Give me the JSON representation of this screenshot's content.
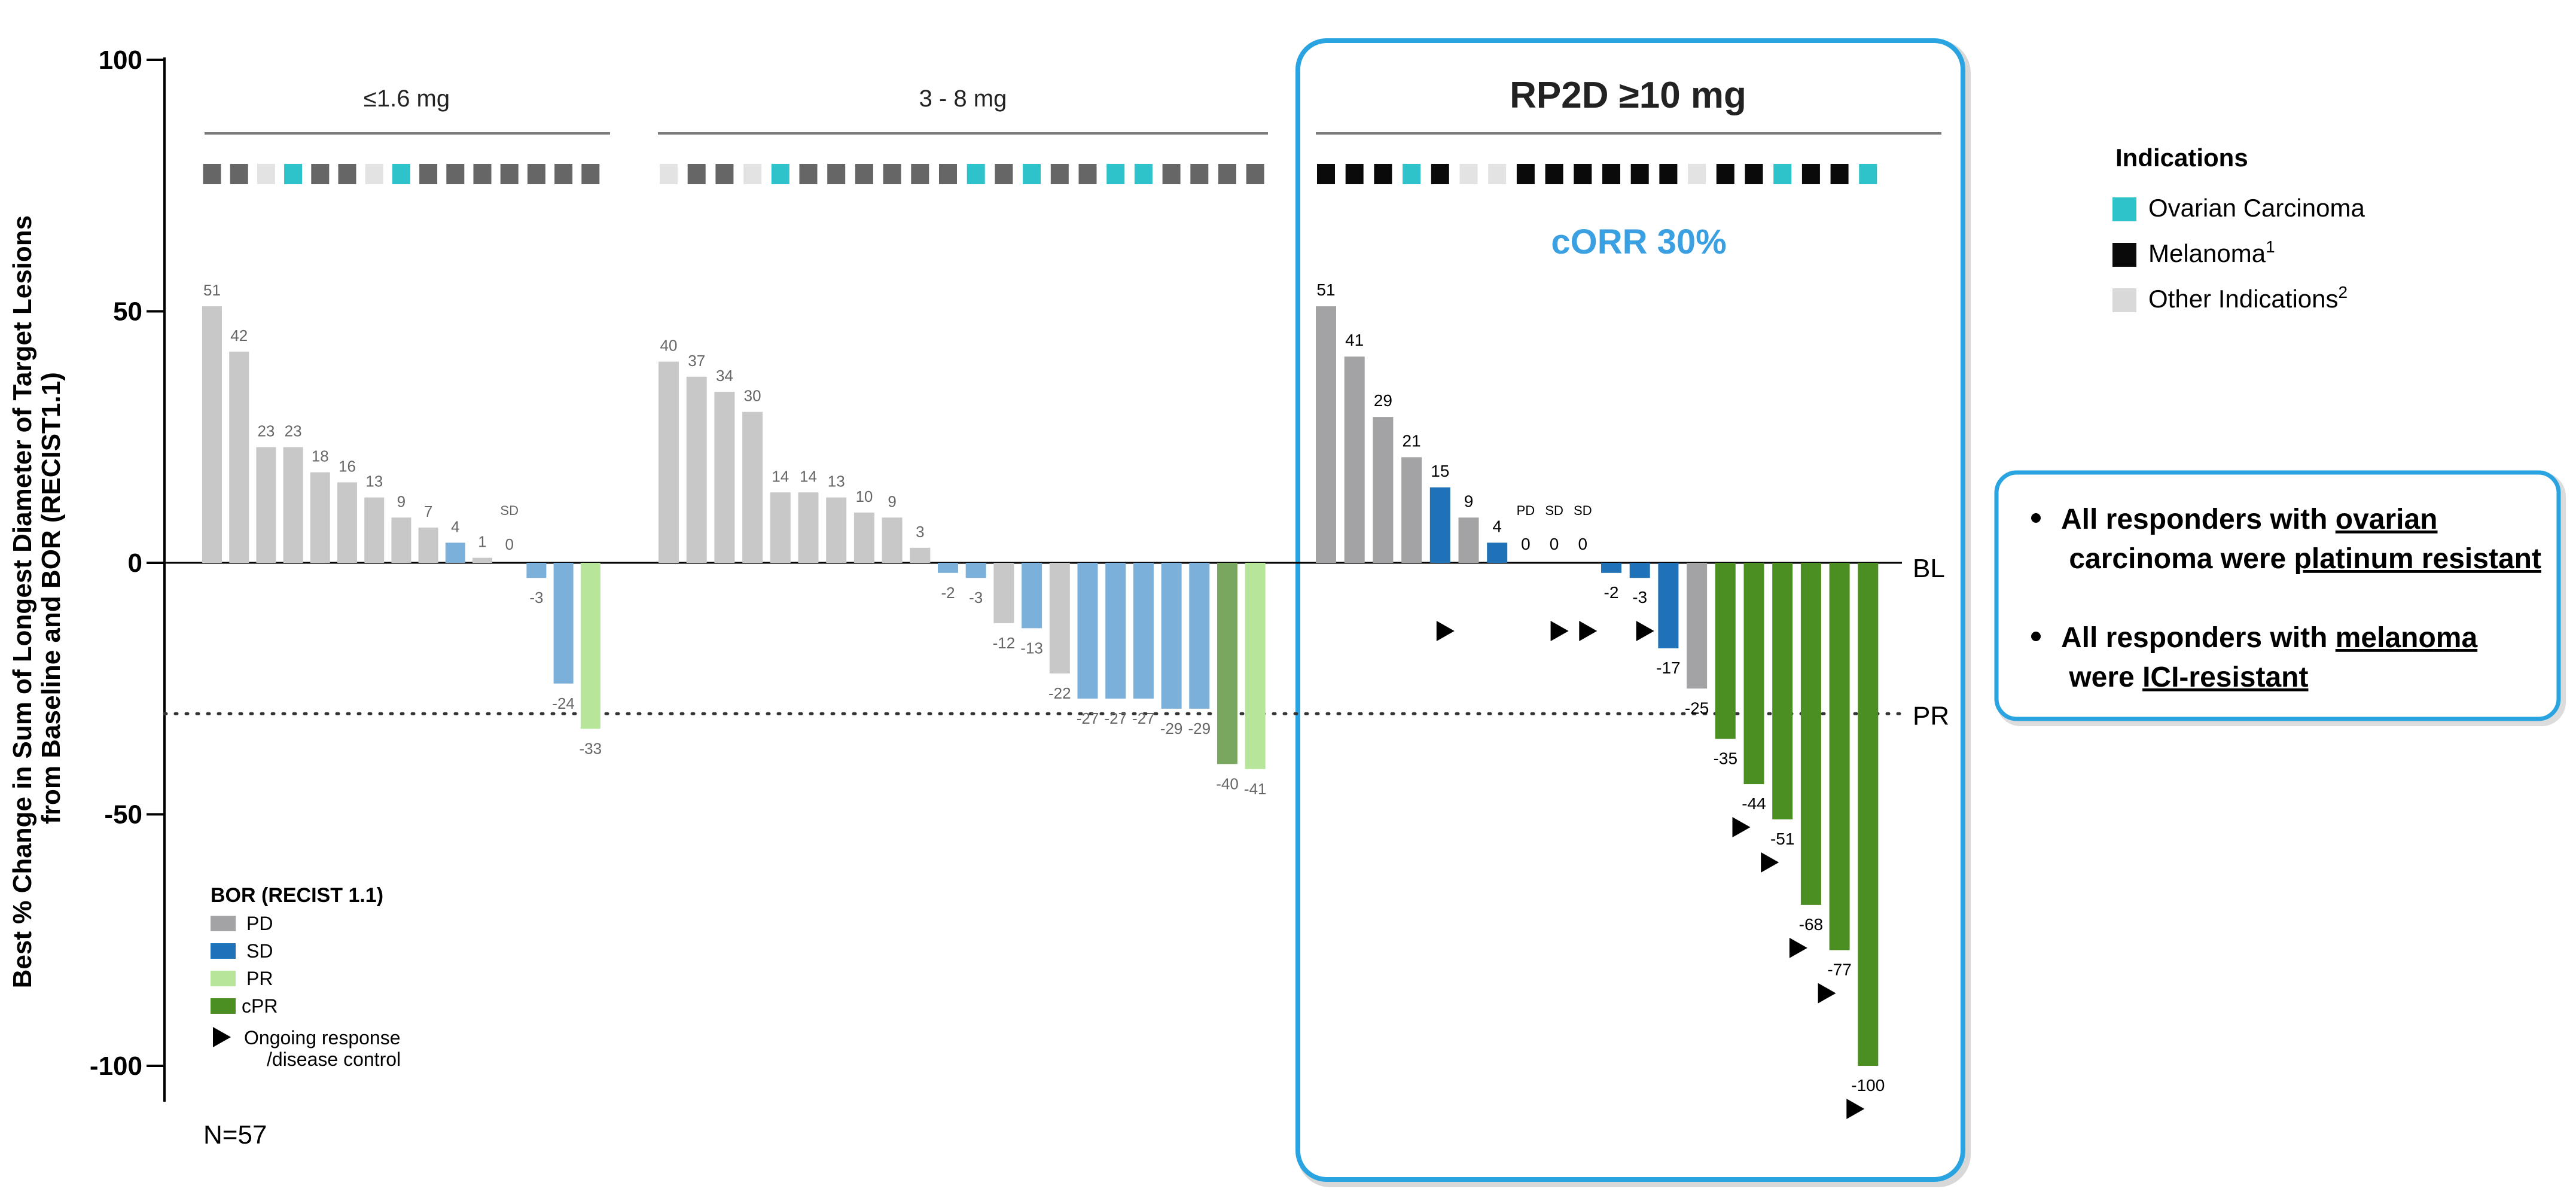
{
  "colors": {
    "pd_light": "#c8c8c8",
    "pd_dark": "#a3a3a5",
    "sd_light": "#7ab0da",
    "sd_dark": "#1f72b8",
    "pr_light": "#b7e59a",
    "pr_mid": "#7aa760",
    "cpr": "#4b8f22",
    "ovarian": "#2ec3cb",
    "melanoma": "#0a0a0a",
    "other_light": "#e3e3e3",
    "other_dark": "#666666",
    "box_accent": "#2aa4e0",
    "corr_text": "#3aa0e2"
  },
  "chart_data": {
    "type": "bar",
    "ylabel": "Best % Change in Sum of Longest Diameter of Target Lesions from Baseline and BOR (RECIST1.1)",
    "ylabel_lines": [
      "Best % Change in Sum of Longest Diameter of Target Lesions",
      "from Baseline and BOR (RECIST1.1)"
    ],
    "ylim": [
      -110,
      100
    ],
    "yticks": [
      100,
      50,
      0,
      -50,
      -100
    ],
    "ytick_labels": [
      "100",
      "50",
      "0",
      "-50",
      "-100"
    ],
    "baseline_label": "BL",
    "pr_threshold": -30,
    "pr_label": "PR",
    "n_label": "N=57",
    "groups": [
      {
        "label": "≤1.6 mg",
        "values": [
          51,
          42,
          23,
          23,
          18,
          16,
          13,
          9,
          7,
          4,
          1,
          0,
          -3,
          -24,
          -33
        ],
        "bor": [
          "PD",
          "PD",
          "PD",
          "PD",
          "PD",
          "PD",
          "PD",
          "PD",
          "PD",
          "SD",
          "PD",
          "SD",
          "SD",
          "SD",
          "PR"
        ],
        "labels": [
          "51",
          "42",
          "23",
          "23",
          "18",
          "16",
          "13",
          "9",
          "7",
          "4",
          "1",
          "0",
          "-3",
          "-24",
          "-33"
        ],
        "indications": [
          "D",
          "D",
          "L",
          "O",
          "D",
          "D",
          "L",
          "O",
          "D",
          "D",
          "D",
          "D",
          "D",
          "D",
          "D"
        ],
        "ongoing": [
          false,
          false,
          false,
          false,
          false,
          false,
          false,
          false,
          false,
          false,
          false,
          false,
          false,
          false,
          false
        ]
      },
      {
        "label": "3 - 8 mg",
        "values": [
          40,
          37,
          34,
          30,
          14,
          14,
          13,
          10,
          9,
          3,
          -2,
          -3,
          -12,
          -13,
          -22,
          -27,
          -27,
          -27,
          -29,
          -29,
          -40,
          -41
        ],
        "bor": [
          "PD",
          "PD",
          "PD",
          "PD",
          "PD",
          "PD",
          "PD",
          "PD",
          "PD",
          "PD",
          "SD",
          "SD",
          "PD",
          "SD",
          "PD",
          "SD",
          "SD",
          "SD",
          "SD",
          "SD",
          "PRM",
          "PR"
        ],
        "labels": [
          "40",
          "37",
          "34",
          "30",
          "14",
          "14",
          "13",
          "10",
          "9",
          "3",
          "-2",
          "-3",
          "-12",
          "-13",
          "-22",
          "-27",
          "-27",
          "-27",
          "-29",
          "-29",
          "-40",
          "-41"
        ],
        "indications": [
          "L",
          "D",
          "D",
          "L",
          "O",
          "D",
          "D",
          "D",
          "D",
          "D",
          "D",
          "O",
          "D",
          "O",
          "D",
          "D",
          "O",
          "O",
          "D",
          "D",
          "D",
          "D"
        ],
        "ongoing": [
          false,
          false,
          false,
          false,
          false,
          false,
          false,
          false,
          false,
          false,
          false,
          false,
          false,
          false,
          false,
          false,
          false,
          false,
          false,
          false,
          false,
          false
        ]
      },
      {
        "label": "RP2D ≥10 mg",
        "values": [
          51,
          41,
          29,
          21,
          15,
          9,
          4,
          0,
          0,
          0,
          -2,
          -3,
          -17,
          -25,
          -35,
          -44,
          -51,
          -68,
          -77,
          -100
        ],
        "bor": [
          "PD",
          "PD",
          "PD",
          "PD",
          "SD",
          "PD",
          "SD",
          "PD",
          "SD",
          "SD",
          "SD",
          "SD",
          "SD",
          "PD",
          "CPR",
          "CPR",
          "CPR",
          "CPR",
          "CPR",
          "CPR"
        ],
        "labels": [
          "51",
          "41",
          "29",
          "21",
          "15",
          "9",
          "4",
          "0",
          "0",
          "0",
          "-2",
          "-3",
          "-17",
          "-25",
          "-35",
          "-44",
          "-51",
          "-68",
          "-77",
          "-100"
        ],
        "zero_tags": [
          "",
          "",
          "",
          "",
          "",
          "",
          "",
          "PD",
          "SD",
          "SD",
          "",
          "",
          "",
          "",
          "",
          "",
          "",
          "",
          "",
          ""
        ],
        "indications": [
          "M",
          "M",
          "M",
          "O",
          "M",
          "L",
          "L",
          "M",
          "M",
          "M",
          "M",
          "M",
          "M",
          "L",
          "M",
          "M",
          "O",
          "M",
          "M",
          "O"
        ],
        "ongoing": [
          false,
          false,
          false,
          false,
          true,
          false,
          false,
          false,
          true,
          true,
          false,
          true,
          false,
          false,
          false,
          true,
          true,
          true,
          true,
          true
        ]
      }
    ],
    "corr_label": "cORR 30%",
    "bor_legend": {
      "title": "BOR (RECIST 1.1)",
      "items": [
        "PD",
        "SD",
        "PR",
        "cPR"
      ],
      "ongoing_line1": "Ongoing response",
      "ongoing_line2": "/disease control"
    },
    "indications_legend": {
      "title": "Indications",
      "items": [
        "Ovarian Carcinoma",
        "Melanoma",
        "Other Indications"
      ],
      "superscripts": [
        "",
        "1",
        "2"
      ]
    }
  },
  "callout": {
    "items": [
      {
        "pre": "All responders with ",
        "u1": "ovarian",
        "mid": " carcinoma were ",
        "u2": "platinum resistant"
      },
      {
        "pre": "All responders with ",
        "u1": "melanoma",
        "mid": " were ",
        "u2": "ICI-resistant"
      }
    ]
  }
}
